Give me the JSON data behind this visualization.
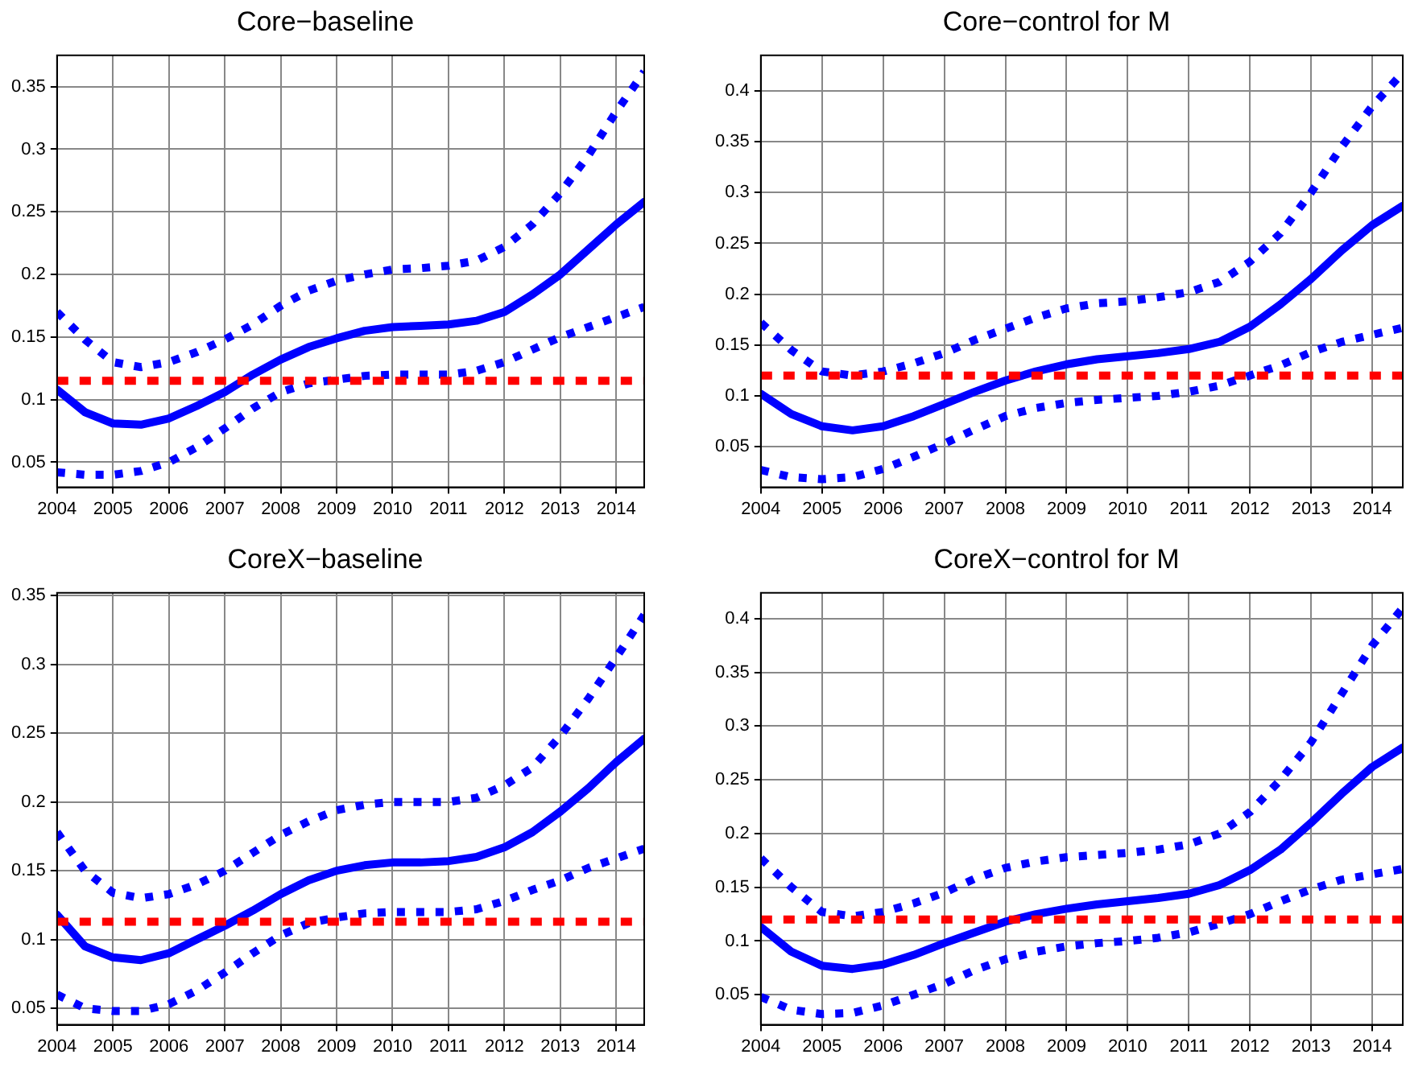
{
  "chart_data": [
    {
      "type": "line",
      "title": "Core−baseline",
      "x": [
        2004,
        2004.5,
        2005,
        2005.5,
        2006,
        2006.5,
        2007,
        2007.5,
        2008,
        2008.5,
        2009,
        2009.5,
        2010,
        2010.5,
        2011,
        2011.5,
        2012,
        2012.5,
        2013,
        2013.5,
        2014,
        2014.5
      ],
      "xlim": [
        2004,
        2014.5
      ],
      "xticks": [
        2004,
        2005,
        2006,
        2007,
        2008,
        2009,
        2010,
        2011,
        2012,
        2013,
        2014
      ],
      "ylim": [
        0.03,
        0.375
      ],
      "yticks": [
        0.05,
        0.1,
        0.15,
        0.2,
        0.25,
        0.3,
        0.35
      ],
      "grid": true,
      "legend": false,
      "marker": "none",
      "series": [
        {
          "color": "#0000ff",
          "line_style": "solid",
          "values": [
            0.108,
            0.09,
            0.081,
            0.08,
            0.085,
            0.095,
            0.106,
            0.12,
            0.132,
            0.142,
            0.149,
            0.155,
            0.158,
            0.159,
            0.16,
            0.163,
            0.17,
            0.184,
            0.2,
            0.22,
            0.24,
            0.258
          ]
        },
        {
          "color": "#0000ff",
          "line_style": "dotted",
          "values": [
            0.17,
            0.148,
            0.13,
            0.126,
            0.13,
            0.138,
            0.148,
            0.16,
            0.175,
            0.187,
            0.195,
            0.2,
            0.204,
            0.205,
            0.207,
            0.211,
            0.222,
            0.24,
            0.265,
            0.295,
            0.33,
            0.362
          ]
        },
        {
          "color": "#0000ff",
          "line_style": "dotted",
          "values": [
            0.042,
            0.04,
            0.04,
            0.043,
            0.05,
            0.062,
            0.077,
            0.093,
            0.106,
            0.113,
            0.116,
            0.119,
            0.12,
            0.12,
            0.12,
            0.123,
            0.13,
            0.14,
            0.15,
            0.158,
            0.166,
            0.174
          ]
        }
      ],
      "ref_lines": [
        {
          "axis": "y",
          "value": 0.115,
          "color": "#ff0000",
          "line_style": "dotted"
        }
      ]
    },
    {
      "type": "line",
      "title": "Core−control for M",
      "x": [
        2004,
        2004.5,
        2005,
        2005.5,
        2006,
        2006.5,
        2007,
        2007.5,
        2008,
        2008.5,
        2009,
        2009.5,
        2010,
        2010.5,
        2011,
        2011.5,
        2012,
        2012.5,
        2013,
        2013.5,
        2014,
        2014.5
      ],
      "xlim": [
        2004,
        2014.5
      ],
      "xticks": [
        2004,
        2005,
        2006,
        2007,
        2008,
        2009,
        2010,
        2011,
        2012,
        2013,
        2014
      ],
      "ylim": [
        0.01,
        0.435
      ],
      "yticks": [
        0.05,
        0.1,
        0.15,
        0.2,
        0.25,
        0.3,
        0.35,
        0.4
      ],
      "grid": true,
      "legend": false,
      "marker": "none",
      "series": [
        {
          "color": "#0000ff",
          "line_style": "solid",
          "values": [
            0.102,
            0.082,
            0.07,
            0.066,
            0.07,
            0.08,
            0.092,
            0.104,
            0.115,
            0.124,
            0.131,
            0.136,
            0.139,
            0.142,
            0.146,
            0.153,
            0.168,
            0.19,
            0.215,
            0.243,
            0.268,
            0.287
          ]
        },
        {
          "color": "#0000ff",
          "line_style": "dotted",
          "values": [
            0.172,
            0.145,
            0.124,
            0.12,
            0.124,
            0.132,
            0.142,
            0.155,
            0.166,
            0.177,
            0.186,
            0.191,
            0.193,
            0.197,
            0.202,
            0.212,
            0.232,
            0.26,
            0.3,
            0.345,
            0.385,
            0.418
          ]
        },
        {
          "color": "#0000ff",
          "line_style": "dotted",
          "values": [
            0.027,
            0.02,
            0.018,
            0.02,
            0.028,
            0.04,
            0.053,
            0.067,
            0.08,
            0.088,
            0.093,
            0.096,
            0.098,
            0.1,
            0.104,
            0.11,
            0.12,
            0.13,
            0.143,
            0.153,
            0.16,
            0.167
          ]
        }
      ],
      "ref_lines": [
        {
          "axis": "y",
          "value": 0.12,
          "color": "#ff0000",
          "line_style": "dotted"
        }
      ]
    },
    {
      "type": "line",
      "title": "CoreX−baseline",
      "x": [
        2004,
        2004.5,
        2005,
        2005.5,
        2006,
        2006.5,
        2007,
        2007.5,
        2008,
        2008.5,
        2009,
        2009.5,
        2010,
        2010.5,
        2011,
        2011.5,
        2012,
        2012.5,
        2013,
        2013.5,
        2014,
        2014.5
      ],
      "xlim": [
        2004,
        2014.5
      ],
      "xticks": [
        2004,
        2005,
        2006,
        2007,
        2008,
        2009,
        2010,
        2011,
        2012,
        2013,
        2014
      ],
      "ylim": [
        0.038,
        0.352
      ],
      "yticks": [
        0.05,
        0.1,
        0.15,
        0.2,
        0.25,
        0.3,
        0.35
      ],
      "grid": true,
      "legend": false,
      "marker": "none",
      "series": [
        {
          "color": "#0000ff",
          "line_style": "solid",
          "values": [
            0.118,
            0.095,
            0.087,
            0.085,
            0.09,
            0.1,
            0.11,
            0.121,
            0.133,
            0.143,
            0.15,
            0.154,
            0.156,
            0.156,
            0.157,
            0.16,
            0.167,
            0.178,
            0.193,
            0.21,
            0.229,
            0.246
          ]
        },
        {
          "color": "#0000ff",
          "line_style": "dotted",
          "values": [
            0.178,
            0.15,
            0.134,
            0.13,
            0.133,
            0.14,
            0.15,
            0.163,
            0.176,
            0.186,
            0.194,
            0.198,
            0.2,
            0.2,
            0.2,
            0.203,
            0.212,
            0.225,
            0.248,
            0.275,
            0.305,
            0.336
          ]
        },
        {
          "color": "#0000ff",
          "line_style": "dotted",
          "values": [
            0.06,
            0.05,
            0.048,
            0.048,
            0.053,
            0.063,
            0.076,
            0.09,
            0.103,
            0.112,
            0.116,
            0.119,
            0.12,
            0.12,
            0.12,
            0.122,
            0.128,
            0.136,
            0.143,
            0.152,
            0.159,
            0.166
          ]
        }
      ],
      "ref_lines": [
        {
          "axis": "y",
          "value": 0.113,
          "color": "#ff0000",
          "line_style": "dotted"
        }
      ]
    },
    {
      "type": "line",
      "title": "CoreX−control for M",
      "x": [
        2004,
        2004.5,
        2005,
        2005.5,
        2006,
        2006.5,
        2007,
        2007.5,
        2008,
        2008.5,
        2009,
        2009.5,
        2010,
        2010.5,
        2011,
        2011.5,
        2012,
        2012.5,
        2013,
        2013.5,
        2014,
        2014.5
      ],
      "xlim": [
        2004,
        2014.5
      ],
      "xticks": [
        2004,
        2005,
        2006,
        2007,
        2008,
        2009,
        2010,
        2011,
        2012,
        2013,
        2014
      ],
      "ylim": [
        0.022,
        0.424
      ],
      "yticks": [
        0.05,
        0.1,
        0.15,
        0.2,
        0.25,
        0.3,
        0.35,
        0.4
      ],
      "grid": true,
      "legend": false,
      "marker": "none",
      "series": [
        {
          "color": "#0000ff",
          "line_style": "solid",
          "values": [
            0.113,
            0.09,
            0.077,
            0.074,
            0.078,
            0.087,
            0.098,
            0.108,
            0.118,
            0.125,
            0.13,
            0.134,
            0.137,
            0.14,
            0.144,
            0.152,
            0.166,
            0.185,
            0.21,
            0.237,
            0.262,
            0.28
          ]
        },
        {
          "color": "#0000ff",
          "line_style": "dotted",
          "values": [
            0.177,
            0.15,
            0.127,
            0.123,
            0.127,
            0.135,
            0.145,
            0.158,
            0.168,
            0.174,
            0.178,
            0.18,
            0.182,
            0.185,
            0.19,
            0.2,
            0.22,
            0.25,
            0.285,
            0.33,
            0.375,
            0.41
          ]
        },
        {
          "color": "#0000ff",
          "line_style": "dotted",
          "values": [
            0.048,
            0.036,
            0.032,
            0.033,
            0.04,
            0.05,
            0.06,
            0.073,
            0.083,
            0.09,
            0.095,
            0.098,
            0.1,
            0.103,
            0.108,
            0.116,
            0.125,
            0.137,
            0.148,
            0.157,
            0.162,
            0.167
          ]
        }
      ],
      "ref_lines": [
        {
          "axis": "y",
          "value": 0.12,
          "color": "#ff0000",
          "line_style": "dotted"
        }
      ]
    }
  ]
}
